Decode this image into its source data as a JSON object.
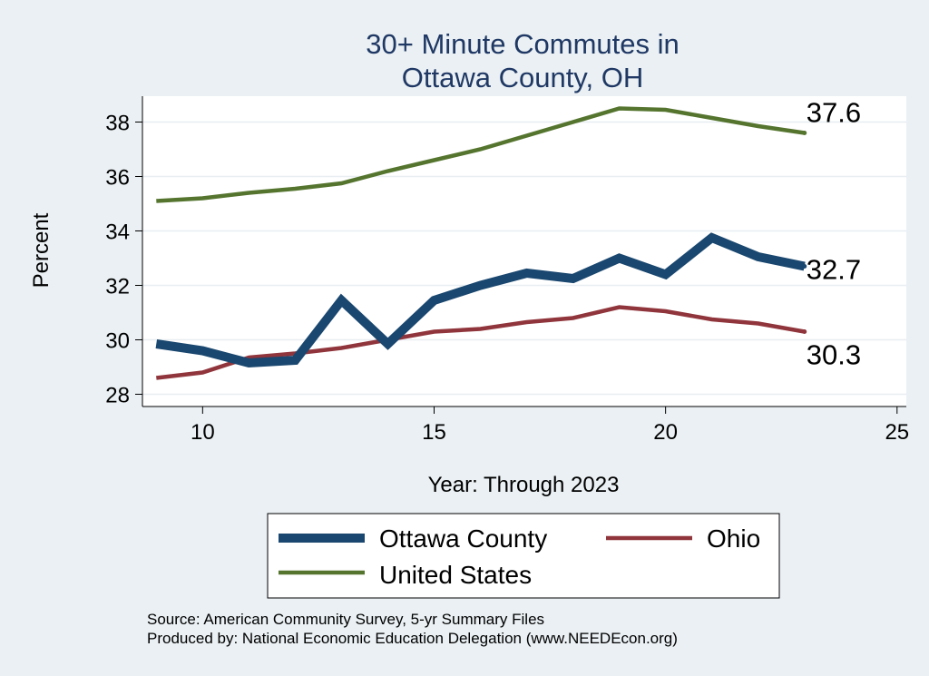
{
  "chart_data": {
    "type": "line",
    "title_lines": [
      "30+ Minute Commutes in",
      "Ottawa County, OH"
    ],
    "xlabel": "Year: Through 2023",
    "ylabel": "Percent",
    "xlim": [
      8.7,
      25.2
    ],
    "ylim": [
      27.55,
      38.95
    ],
    "xticks": [
      10,
      15,
      20,
      25
    ],
    "yticks": [
      28,
      30,
      32,
      34,
      36,
      38
    ],
    "grid": true,
    "legend_position": "bottom",
    "x": [
      9,
      10,
      11,
      12,
      13,
      14,
      15,
      16,
      17,
      18,
      19,
      20,
      21,
      22,
      23
    ],
    "series": [
      {
        "name": "Ottawa County",
        "color": "#1a476f",
        "width": "thick",
        "values": [
          29.85,
          29.6,
          29.15,
          29.25,
          31.45,
          29.85,
          31.45,
          32.0,
          32.45,
          32.25,
          33.0,
          32.4,
          33.75,
          33.05,
          32.7
        ],
        "end_label": "32.7"
      },
      {
        "name": "Ohio",
        "color": "#90353b",
        "width": "medium",
        "values": [
          28.6,
          28.8,
          29.35,
          29.5,
          29.7,
          30.0,
          30.3,
          30.4,
          30.65,
          30.8,
          31.2,
          31.05,
          30.75,
          30.6,
          30.3
        ],
        "end_label": "30.3"
      },
      {
        "name": "United States",
        "color": "#55752f",
        "width": "medium",
        "values": [
          35.1,
          35.2,
          35.4,
          35.55,
          35.75,
          36.2,
          36.6,
          37.0,
          37.5,
          38.0,
          38.5,
          38.45,
          38.15,
          37.85,
          37.6
        ],
        "end_label": "37.6"
      }
    ],
    "source_lines": [
      "Source: American Community Survey, 5-yr Summary Files",
      "Produced by: National Economic Education Delegation (www.NEEDEcon.org)"
    ]
  }
}
